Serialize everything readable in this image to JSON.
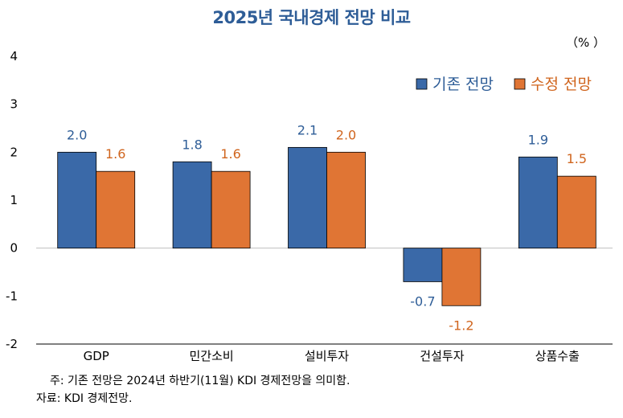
{
  "chart_data": {
    "type": "bar",
    "title": "2025년 국내경제 전망 비교",
    "unit": "（% ）",
    "categories": [
      "GDP",
      "민간소비",
      "설비투자",
      "건설투자",
      "상품수출"
    ],
    "series": [
      {
        "name": "기존 전망",
        "values": [
          2.0,
          1.8,
          2.1,
          -0.7,
          1.9
        ],
        "labels": [
          "2.0",
          "1.8",
          "2.1",
          "-0.7",
          "1.9"
        ],
        "color": "#3A69A8",
        "label_color": "#2E5D97"
      },
      {
        "name": "수정 전망",
        "values": [
          1.6,
          1.6,
          2.0,
          -1.2,
          1.5
        ],
        "labels": [
          "1.6",
          "1.6",
          "2.0",
          "-1.2",
          "1.5"
        ],
        "color": "#E07534",
        "label_color": "#D0651E"
      }
    ],
    "yticks": [
      "4",
      "3",
      "2",
      "1",
      "0",
      "-1",
      "-2"
    ],
    "ylim": [
      -2,
      4
    ],
    "legend_position": "top-right",
    "grid": false
  },
  "notes": {
    "note1": "주:  기존 전망은 2024년 하반기(11월) KDI 경제전망을 의미함.",
    "note2": "자료:  KDI 경제전망."
  }
}
